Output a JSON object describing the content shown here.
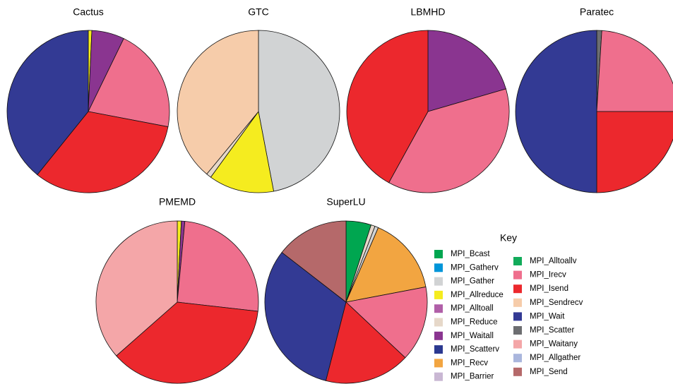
{
  "chart_data": [
    {
      "type": "pie",
      "title": "Cactus",
      "labels": [
        "MPI_Allreduce",
        "MPI_Waitall",
        "MPI_Irecv",
        "MPI_Isend",
        "MPI_Wait"
      ],
      "values": [
        0.7,
        6.5,
        20.8,
        32.8,
        39.2
      ]
    },
    {
      "type": "pie",
      "title": "GTC",
      "labels": [
        "MPI_Gather",
        "MPI_Allreduce",
        "MPI_Reduce",
        "MPI_Sendrecv"
      ],
      "values": [
        47,
        13,
        1,
        39
      ]
    },
    {
      "type": "pie",
      "title": "LBMHD",
      "labels": [
        "MPI_Waitall",
        "MPI_Irecv",
        "MPI_Isend"
      ],
      "values": [
        20.5,
        37.5,
        42
      ]
    },
    {
      "type": "pie",
      "title": "Paratec",
      "labels": [
        "MPI_Scatter",
        "MPI_Irecv",
        "MPI_Isend",
        "MPI_Wait"
      ],
      "values": [
        1,
        24,
        25,
        50
      ]
    },
    {
      "type": "pie",
      "title": "PMEMD",
      "labels": [
        "MPI_Allreduce",
        "MPI_Waitall",
        "MPI_Irecv",
        "MPI_Isend",
        "MPI_Waitany"
      ],
      "values": [
        0.8,
        0.7,
        25.3,
        36.7,
        36.5
      ]
    },
    {
      "type": "pie",
      "title": "SuperLU",
      "labels": [
        "MPI_Bcast",
        "MPI_Reduce",
        "MPI_Gather",
        "MPI_Recv",
        "MPI_Irecv",
        "MPI_Isend",
        "MPI_Wait",
        "MPI_Send"
      ],
      "values": [
        5,
        0.8,
        0.7,
        15.5,
        15,
        17,
        31.5,
        14.5
      ]
    }
  ],
  "key": {
    "title": "Key",
    "entries": [
      {
        "name": "MPI_Bcast",
        "color": "#00a650"
      },
      {
        "name": "MPI_Gatherv",
        "color": "#0095d9"
      },
      {
        "name": "MPI_Gather",
        "color": "#d1d3d4"
      },
      {
        "name": "MPI_Allreduce",
        "color": "#f5ec1f"
      },
      {
        "name": "MPI_Alltoall",
        "color": "#b05fa8"
      },
      {
        "name": "MPI_Reduce",
        "color": "#e6d8c9"
      },
      {
        "name": "MPI_Waitall",
        "color": "#8a3590"
      },
      {
        "name": "MPI_Scatterv",
        "color": "#2b3990"
      },
      {
        "name": "MPI_Recv",
        "color": "#f2a541"
      },
      {
        "name": "MPI_Barrier",
        "color": "#c9b7d3"
      },
      {
        "name": "MPI_Alltoallv",
        "color": "#12ab5a"
      },
      {
        "name": "MPI_Irecv",
        "color": "#ef6f8d"
      },
      {
        "name": "MPI_Isend",
        "color": "#ec282d"
      },
      {
        "name": "MPI_Sendrecv",
        "color": "#f6ccaa"
      },
      {
        "name": "MPI_Wait",
        "color": "#333a94"
      },
      {
        "name": "MPI_Scatter",
        "color": "#6d6e71"
      },
      {
        "name": "MPI_Waitany",
        "color": "#f4a6a8"
      },
      {
        "name": "MPI_Allgather",
        "color": "#aab6dd"
      },
      {
        "name": "MPI_Send",
        "color": "#b5696a"
      }
    ]
  }
}
